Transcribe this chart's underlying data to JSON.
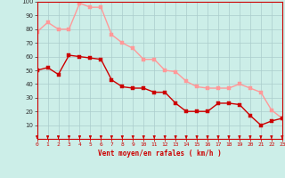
{
  "x": [
    0,
    1,
    2,
    3,
    4,
    5,
    6,
    7,
    8,
    9,
    10,
    11,
    12,
    13,
    14,
    15,
    16,
    17,
    18,
    19,
    20,
    21,
    22,
    23
  ],
  "vent_moyen": [
    50,
    52,
    47,
    61,
    60,
    59,
    58,
    43,
    38,
    37,
    37,
    34,
    34,
    26,
    20,
    20,
    20,
    26,
    26,
    25,
    17,
    10,
    13,
    15
  ],
  "en_rafales": [
    78,
    85,
    80,
    80,
    99,
    96,
    96,
    76,
    70,
    66,
    58,
    58,
    50,
    49,
    42,
    38,
    37,
    37,
    37,
    40,
    37,
    34,
    21,
    15
  ],
  "xlabel": "Vent moyen/en rafales ( km/h )",
  "xlim": [
    0,
    23
  ],
  "ylim": [
    0,
    100
  ],
  "yticks": [
    10,
    20,
    30,
    40,
    50,
    60,
    70,
    80,
    90,
    100
  ],
  "bg_color": "#cceee8",
  "grid_color": "#aacccc",
  "line_color_moyen": "#cc0000",
  "line_color_rafales": "#ff9999",
  "arrow_color": "#cc0000",
  "xlabel_color": "#cc0000",
  "xtick_color": "#cc0000",
  "ytick_color": "#333333",
  "spine_color": "#cc0000",
  "marker_size": 2.5,
  "line_width": 1.0
}
